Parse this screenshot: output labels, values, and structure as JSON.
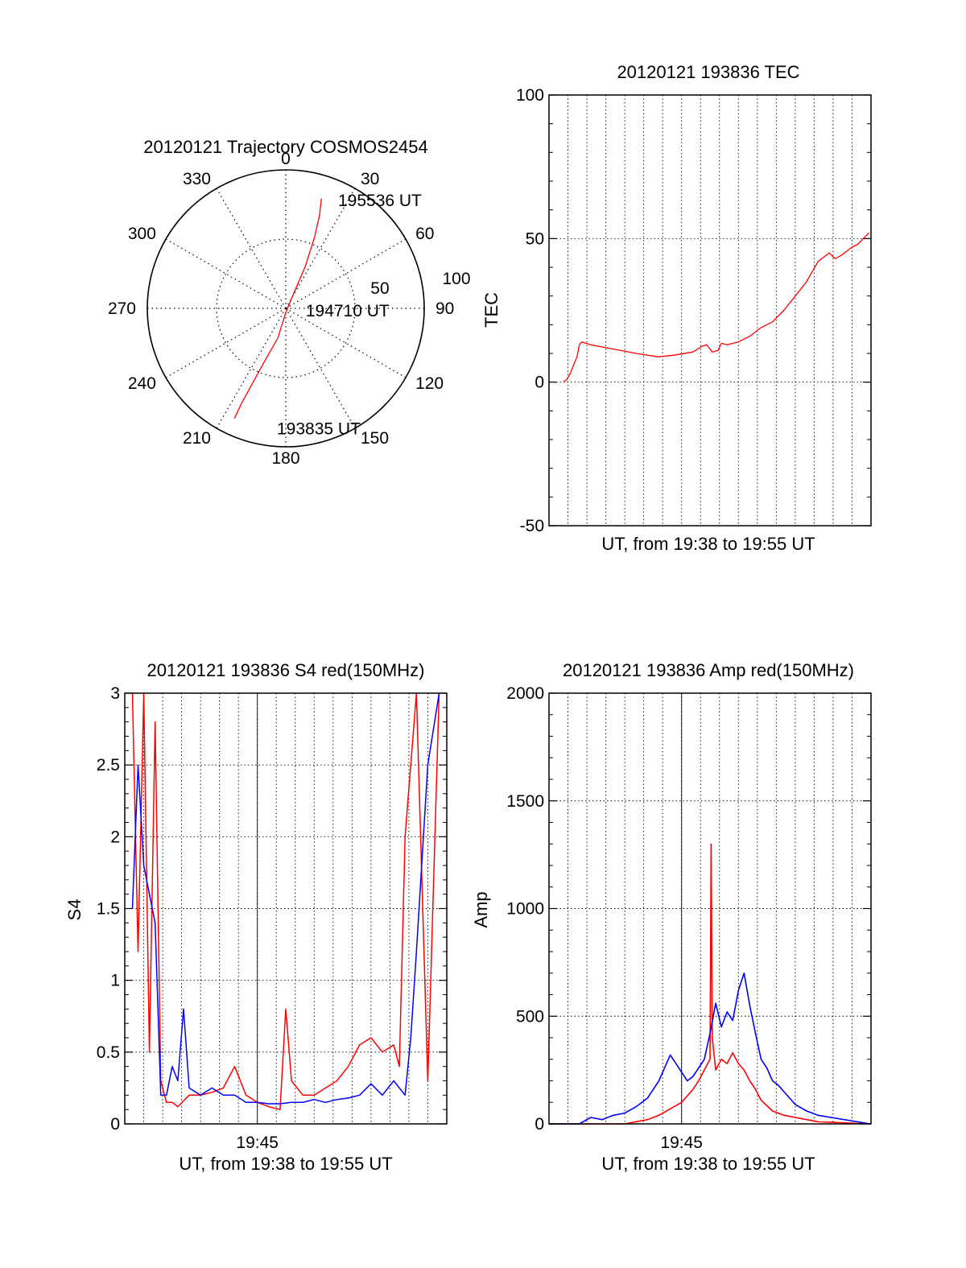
{
  "chart_data": [
    {
      "type": "polar",
      "title": "20120121 Trajectory COSMOS2454",
      "angle_labels": [
        "0",
        "30",
        "60",
        "90",
        "120",
        "150",
        "180",
        "210",
        "240",
        "270",
        "300",
        "330"
      ],
      "radial_labels": [
        "50",
        "100"
      ],
      "rlim": [
        0,
        100
      ],
      "grid": true,
      "series": [
        {
          "color": "#ff0000",
          "points": [
            {
              "az": 205,
              "el": 11
            },
            {
              "az": 205,
              "el": 22
            },
            {
              "az": 204,
              "el": 36
            },
            {
              "az": 202,
              "el": 52
            },
            {
              "az": 195,
              "el": 70
            },
            {
              "az": 181,
              "el": 87
            },
            {
              "az": 30,
              "el": 82
            },
            {
              "az": 25,
              "el": 60
            },
            {
              "az": 22,
              "el": 40
            },
            {
              "az": 20,
              "el": 26
            },
            {
              "az": 18,
              "el": 15
            }
          ]
        }
      ],
      "annotations": [
        {
          "text": "195536 UT",
          "az": 25,
          "el": 12
        },
        {
          "text": "194710 UT",
          "az": 95,
          "el": 78
        },
        {
          "text": "193835 UT",
          "az": 185,
          "el": 12
        }
      ]
    },
    {
      "type": "line",
      "title": "20120121 193836 TEC",
      "xlabel": "UT, from 19:38 to 19:55 UT",
      "ylabel": "TEC",
      "xlim": [
        19.6333,
        19.9167
      ],
      "ylim": [
        -50,
        100
      ],
      "yticks": [
        -50,
        0,
        50,
        100
      ],
      "xtick_labels": [],
      "grid": true,
      "series": [
        {
          "color": "#ff0000",
          "x": [
            19.646,
            19.649,
            19.652,
            19.655,
            19.658,
            19.66,
            19.662,
            19.67,
            19.69,
            19.71,
            19.73,
            19.745,
            19.76,
            19.768,
            19.772,
            19.777,
            19.782,
            19.785,
            19.79,
            19.8,
            19.81,
            19.82,
            19.83,
            19.84,
            19.85,
            19.86,
            19.87,
            19.88,
            19.885,
            19.89,
            19.895,
            19.9,
            19.905,
            19.91,
            19.915
          ],
          "y": [
            0,
            1,
            3,
            6,
            9,
            13,
            14,
            13,
            11.5,
            10,
            8.8,
            9.5,
            10.5,
            12.5,
            13,
            10.5,
            11,
            13.5,
            13,
            14,
            16,
            19,
            21,
            25,
            30,
            35,
            42,
            45,
            43,
            44,
            45.5,
            47,
            48,
            50,
            52
          ]
        }
      ]
    },
    {
      "type": "line",
      "title": "20120121 193836 S4 red(150MHz)",
      "xlabel": "UT, from 19:38 to 19:55 UT",
      "ylabel": "S4",
      "xlim": [
        19.6333,
        19.9167
      ],
      "ylim": [
        0,
        3
      ],
      "yticks": [
        0,
        0.5,
        1,
        1.5,
        2,
        2.5,
        3
      ],
      "xticks": [
        19.75
      ],
      "xtick_labels": [
        "19:45"
      ],
      "grid": true,
      "series": [
        {
          "color": "#ff0000",
          "x": [
            19.64,
            19.645,
            19.65,
            19.655,
            19.66,
            19.665,
            19.67,
            19.675,
            19.68,
            19.69,
            19.7,
            19.71,
            19.72,
            19.73,
            19.74,
            19.75,
            19.76,
            19.77,
            19.775,
            19.78,
            19.79,
            19.8,
            19.81,
            19.82,
            19.83,
            19.84,
            19.85,
            19.86,
            19.87,
            19.875,
            19.88,
            19.89,
            19.9,
            19.91
          ],
          "y": [
            3.0,
            1.2,
            3.0,
            0.5,
            2.8,
            0.3,
            0.15,
            0.15,
            0.12,
            0.2,
            0.2,
            0.22,
            0.25,
            0.4,
            0.2,
            0.15,
            0.12,
            0.1,
            0.8,
            0.3,
            0.2,
            0.2,
            0.25,
            0.3,
            0.4,
            0.55,
            0.6,
            0.5,
            0.55,
            0.4,
            2.0,
            3.0,
            0.3,
            3.0
          ]
        },
        {
          "color": "#0000ff",
          "x": [
            19.64,
            19.645,
            19.65,
            19.655,
            19.66,
            19.665,
            19.67,
            19.675,
            19.68,
            19.685,
            19.69,
            19.7,
            19.71,
            19.72,
            19.73,
            19.74,
            19.75,
            19.76,
            19.77,
            19.78,
            19.79,
            19.8,
            19.81,
            19.82,
            19.83,
            19.84,
            19.85,
            19.86,
            19.87,
            19.88,
            19.885,
            19.89,
            19.9,
            19.91
          ],
          "y": [
            1.5,
            2.5,
            1.8,
            1.6,
            1.4,
            0.2,
            0.2,
            0.4,
            0.3,
            0.8,
            0.25,
            0.2,
            0.25,
            0.2,
            0.2,
            0.15,
            0.15,
            0.14,
            0.14,
            0.15,
            0.15,
            0.17,
            0.15,
            0.17,
            0.18,
            0.2,
            0.28,
            0.2,
            0.3,
            0.2,
            0.6,
            1.2,
            2.5,
            3.0
          ]
        }
      ]
    },
    {
      "type": "line",
      "title": "20120121 193836 Amp red(150MHz)",
      "xlabel": "UT, from 19:38 to 19:55 UT",
      "ylabel": "Amp",
      "xlim": [
        19.6333,
        19.9167
      ],
      "ylim": [
        0,
        2000
      ],
      "yticks": [
        0,
        500,
        1000,
        1500,
        2000
      ],
      "xticks": [
        19.75
      ],
      "xtick_labels": [
        "19:45"
      ],
      "grid": true,
      "series": [
        {
          "color": "#ff0000",
          "x": [
            19.633,
            19.7,
            19.71,
            19.72,
            19.73,
            19.74,
            19.75,
            19.76,
            19.765,
            19.77,
            19.775,
            19.776,
            19.777,
            19.78,
            19.785,
            19.79,
            19.795,
            19.8,
            19.805,
            19.81,
            19.815,
            19.82,
            19.83,
            19.84,
            19.85,
            19.86,
            19.87,
            19.916
          ],
          "y": [
            0,
            0,
            10,
            20,
            40,
            70,
            100,
            160,
            200,
            250,
            300,
            1300,
            400,
            250,
            300,
            280,
            330,
            280,
            250,
            200,
            160,
            110,
            60,
            40,
            30,
            20,
            10,
            0
          ]
        },
        {
          "color": "#0000ff",
          "x": [
            19.633,
            19.66,
            19.67,
            19.68,
            19.69,
            19.7,
            19.71,
            19.72,
            19.73,
            19.74,
            19.745,
            19.75,
            19.755,
            19.76,
            19.765,
            19.77,
            19.775,
            19.78,
            19.785,
            19.79,
            19.795,
            19.8,
            19.805,
            19.81,
            19.815,
            19.82,
            19.825,
            19.83,
            19.835,
            19.84,
            19.85,
            19.86,
            19.87,
            19.916
          ],
          "y": [
            0,
            0,
            30,
            20,
            40,
            50,
            80,
            120,
            200,
            320,
            280,
            240,
            200,
            220,
            260,
            300,
            420,
            560,
            450,
            520,
            480,
            620,
            700,
            550,
            420,
            300,
            260,
            200,
            180,
            150,
            90,
            60,
            40,
            0
          ]
        }
      ]
    }
  ]
}
